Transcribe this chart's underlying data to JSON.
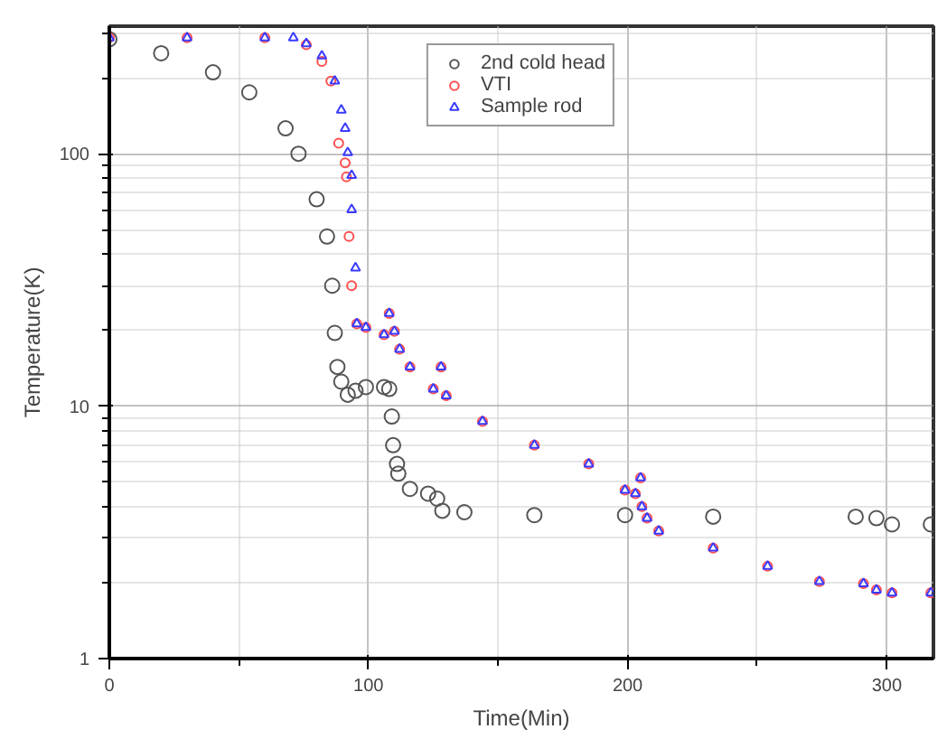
{
  "chart_data": {
    "type": "scatter",
    "xlabel": "Time(Min)",
    "ylabel": "Temperature(K)",
    "log": "y",
    "grid": true,
    "legend": "top",
    "xlim": [
      0,
      318
    ],
    "ylim": [
      1,
      320
    ],
    "xticks": [
      0,
      100,
      200,
      300
    ],
    "yticks": [
      1,
      10,
      100
    ],
    "series": [
      {
        "name": "2nd cold head",
        "color": "#555555",
        "marker": "circle",
        "x": [
          0,
          20,
          40,
          54,
          68,
          73,
          80,
          84,
          86,
          87,
          88,
          89.5,
          92,
          95,
          99,
          106,
          108,
          109,
          109.5,
          111,
          111.5,
          116,
          123,
          126.5,
          128.5,
          137,
          164,
          199,
          233,
          288,
          296,
          302,
          317
        ],
        "values": [
          284,
          250,
          210,
          175,
          126,
          100,
          66,
          47,
          30,
          19.5,
          14.3,
          12.5,
          11.1,
          11.5,
          11.9,
          11.9,
          11.7,
          9.1,
          7.0,
          5.9,
          5.4,
          4.7,
          4.5,
          4.3,
          3.85,
          3.8,
          3.7,
          3.7,
          3.65,
          3.65,
          3.6,
          3.4,
          3.4
        ]
      },
      {
        "name": "VTI",
        "color": "#ff5050",
        "marker": "circle",
        "x": [
          0,
          30,
          60,
          76,
          82,
          85.5,
          88.5,
          91,
          91.5,
          92.5,
          93.5,
          95.5,
          99,
          106,
          108,
          110,
          112,
          116,
          125,
          128,
          130,
          144,
          164,
          185,
          199,
          203,
          205,
          205.5,
          207.5,
          212,
          233,
          254,
          274,
          291,
          296,
          302,
          317
        ],
        "values": [
          288,
          288,
          288,
          270,
          232,
          194,
          110,
          92,
          81,
          47,
          30,
          21.2,
          20.5,
          19.2,
          23.3,
          19.8,
          16.8,
          14.3,
          11.7,
          14.3,
          11.0,
          8.7,
          7.0,
          5.9,
          4.65,
          4.5,
          5.2,
          4.0,
          3.6,
          3.2,
          2.74,
          2.32,
          2.02,
          1.98,
          1.87,
          1.82,
          1.82
        ]
      },
      {
        "name": "Sample rod",
        "color": "#3a3aff",
        "marker": "triangle",
        "x": [
          0,
          30,
          60,
          71,
          76,
          82,
          87,
          89.5,
          91,
          92,
          93.5,
          93.5,
          95,
          95.5,
          99,
          106,
          108,
          110,
          112,
          116,
          125,
          128,
          130,
          144,
          164,
          185,
          199,
          203,
          205,
          205.5,
          207.5,
          212,
          233,
          254,
          274,
          291,
          296,
          302,
          317
        ],
        "values": [
          288,
          288,
          288,
          288,
          273,
          244,
          194,
          149,
          126,
          101,
          82,
          60,
          35.3,
          21.2,
          20.5,
          19.2,
          23.3,
          19.8,
          16.8,
          14.3,
          11.7,
          14.3,
          11.0,
          8.7,
          7.0,
          5.9,
          4.65,
          4.5,
          5.2,
          4.0,
          3.6,
          3.2,
          2.74,
          2.32,
          2.02,
          1.98,
          1.87,
          1.82,
          1.82
        ]
      }
    ]
  }
}
